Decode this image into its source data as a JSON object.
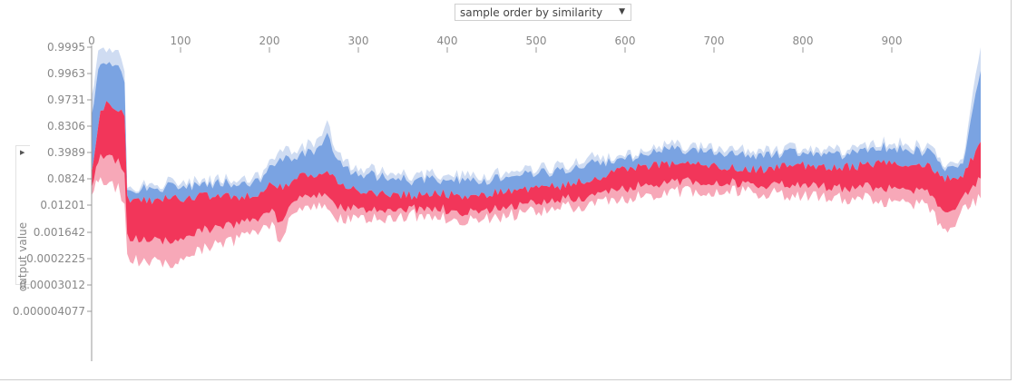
{
  "controls": {
    "order_select": {
      "selected": "sample order by similarity",
      "arrow": "▼"
    },
    "side_toggle_icon": "▶"
  },
  "colors": {
    "positive_dark": "#f2365a",
    "positive_light": "#f7a8b8",
    "negative_dark": "#7aa3e2",
    "negative_light": "#cfdcf2",
    "axis": "#999999",
    "tick_text": "#888888"
  },
  "chart_data": {
    "type": "area",
    "title": "",
    "xlabel": "",
    "ylabel": "output value",
    "xlim": [
      0,
      1000
    ],
    "x_ticks": [
      0,
      100,
      200,
      300,
      400,
      500,
      600,
      700,
      800,
      900
    ],
    "x_tick_labels": [
      "0",
      "100",
      "200",
      "300",
      "400",
      "500",
      "600",
      "700",
      "800",
      "900"
    ],
    "y_scale": "logit",
    "y_ticks": [
      0.9995,
      0.9963,
      0.9731,
      0.8306,
      0.3989,
      0.0824,
      0.01201,
      0.001642,
      0.0002225,
      3.012e-05,
      4.077e-06
    ],
    "y_tick_labels": [
      "0.9995",
      "0.9963",
      "0.9731",
      "0.8306",
      "0.3989",
      "0.0824",
      "0.01201",
      "0.001642",
      "0.0002225",
      "0.00003012",
      "0.000004077"
    ],
    "series_note": "stacked force plot: red = features pushing output higher, blue = pushing lower",
    "series": [
      {
        "name": "upper envelope",
        "x": [
          0,
          5,
          10,
          20,
          30,
          37,
          40,
          50,
          80,
          100,
          110,
          130,
          160,
          190,
          200,
          215,
          225,
          240,
          250,
          265,
          280,
          300,
          330,
          360,
          380,
          420,
          460,
          500,
          530,
          560,
          600,
          650,
          700,
          750,
          800,
          850,
          870,
          900,
          940,
          960,
          980,
          1000
        ],
        "values": [
          0.9731,
          0.998,
          0.9995,
          0.9995,
          0.9995,
          0.9963,
          0.06,
          0.05,
          0.06,
          0.065,
          0.07,
          0.075,
          0.08,
          0.09,
          0.25,
          0.5,
          0.45,
          0.5,
          0.6,
          0.85,
          0.3,
          0.15,
          0.15,
          0.1,
          0.12,
          0.1,
          0.12,
          0.15,
          0.2,
          0.3,
          0.35,
          0.55,
          0.5,
          0.4,
          0.5,
          0.45,
          0.55,
          0.6,
          0.5,
          0.2,
          0.3,
          0.9995
        ]
      },
      {
        "name": "base value",
        "x": [
          0,
          5,
          10,
          20,
          30,
          37,
          40,
          50,
          80,
          100,
          110,
          130,
          160,
          190,
          200,
          215,
          225,
          240,
          250,
          265,
          280,
          300,
          330,
          360,
          380,
          420,
          460,
          500,
          530,
          560,
          600,
          650,
          700,
          750,
          800,
          850,
          870,
          900,
          940,
          960,
          980,
          1000
        ],
        "values": [
          0.09,
          0.5,
          0.95,
          0.97,
          0.95,
          0.9,
          0.02,
          0.015,
          0.02,
          0.02,
          0.02,
          0.025,
          0.02,
          0.03,
          0.06,
          0.05,
          0.07,
          0.1,
          0.12,
          0.15,
          0.06,
          0.03,
          0.03,
          0.025,
          0.03,
          0.025,
          0.03,
          0.04,
          0.05,
          0.08,
          0.15,
          0.22,
          0.2,
          0.15,
          0.2,
          0.18,
          0.2,
          0.25,
          0.2,
          0.08,
          0.1,
          0.6
        ]
      },
      {
        "name": "lower envelope",
        "x": [
          0,
          5,
          10,
          20,
          30,
          37,
          40,
          50,
          80,
          100,
          110,
          130,
          160,
          190,
          200,
          215,
          225,
          240,
          250,
          265,
          280,
          300,
          330,
          360,
          380,
          420,
          460,
          500,
          530,
          560,
          600,
          650,
          700,
          750,
          800,
          850,
          870,
          900,
          940,
          960,
          980,
          1000
        ],
        "values": [
          0.02,
          0.05,
          0.06,
          0.05,
          0.04,
          0.01,
          0.0002,
          0.0002,
          0.00015,
          0.0002,
          0.0003,
          0.0006,
          0.0008,
          0.002,
          0.003,
          0.0008,
          0.008,
          0.01,
          0.012,
          0.008,
          0.004,
          0.005,
          0.004,
          0.006,
          0.005,
          0.004,
          0.005,
          0.008,
          0.01,
          0.012,
          0.02,
          0.03,
          0.035,
          0.03,
          0.025,
          0.02,
          0.02,
          0.015,
          0.012,
          0.0015,
          0.008,
          0.02
        ]
      }
    ],
    "grid": false,
    "legend": "none"
  }
}
